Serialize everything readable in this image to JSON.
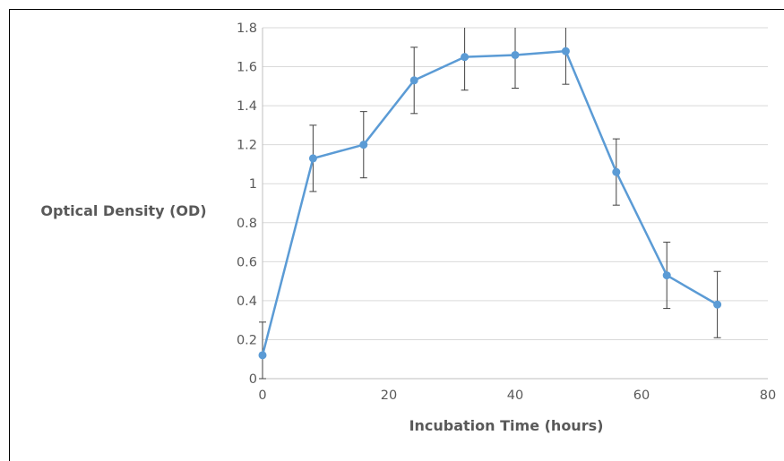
{
  "chart_data": {
    "type": "line",
    "title": "",
    "xlabel": "Incubation Time (hours)",
    "ylabel": "Optical Density (OD)",
    "xlim": [
      0,
      80
    ],
    "ylim": [
      0,
      1.8
    ],
    "x_ticks": [
      0,
      20,
      40,
      60,
      80
    ],
    "y_ticks": [
      0,
      0.2,
      0.4,
      0.6,
      0.8,
      1,
      1.2,
      1.4,
      1.6,
      1.8
    ],
    "y_tick_labels": [
      "0",
      "0.2",
      "0.4",
      "0.6",
      "0.8",
      "1",
      "1.2",
      "1.4",
      "1.6",
      "1.8"
    ],
    "grid": "horizontal",
    "legend": "none",
    "series": [
      {
        "color": "#5b9bd5",
        "x": [
          0,
          8,
          16,
          24,
          32,
          40,
          48,
          56,
          64,
          72
        ],
        "values": [
          0.12,
          1.13,
          1.2,
          1.53,
          1.65,
          1.66,
          1.68,
          1.06,
          0.53,
          0.38
        ],
        "error": [
          0.17,
          0.17,
          0.17,
          0.17,
          0.17,
          0.17,
          0.17,
          0.17,
          0.17,
          0.17
        ]
      }
    ],
    "colors": {
      "grid": "#d9d9d9",
      "axis": "#bfbfbf",
      "error_bar": "#404040",
      "text": "#595959"
    }
  }
}
